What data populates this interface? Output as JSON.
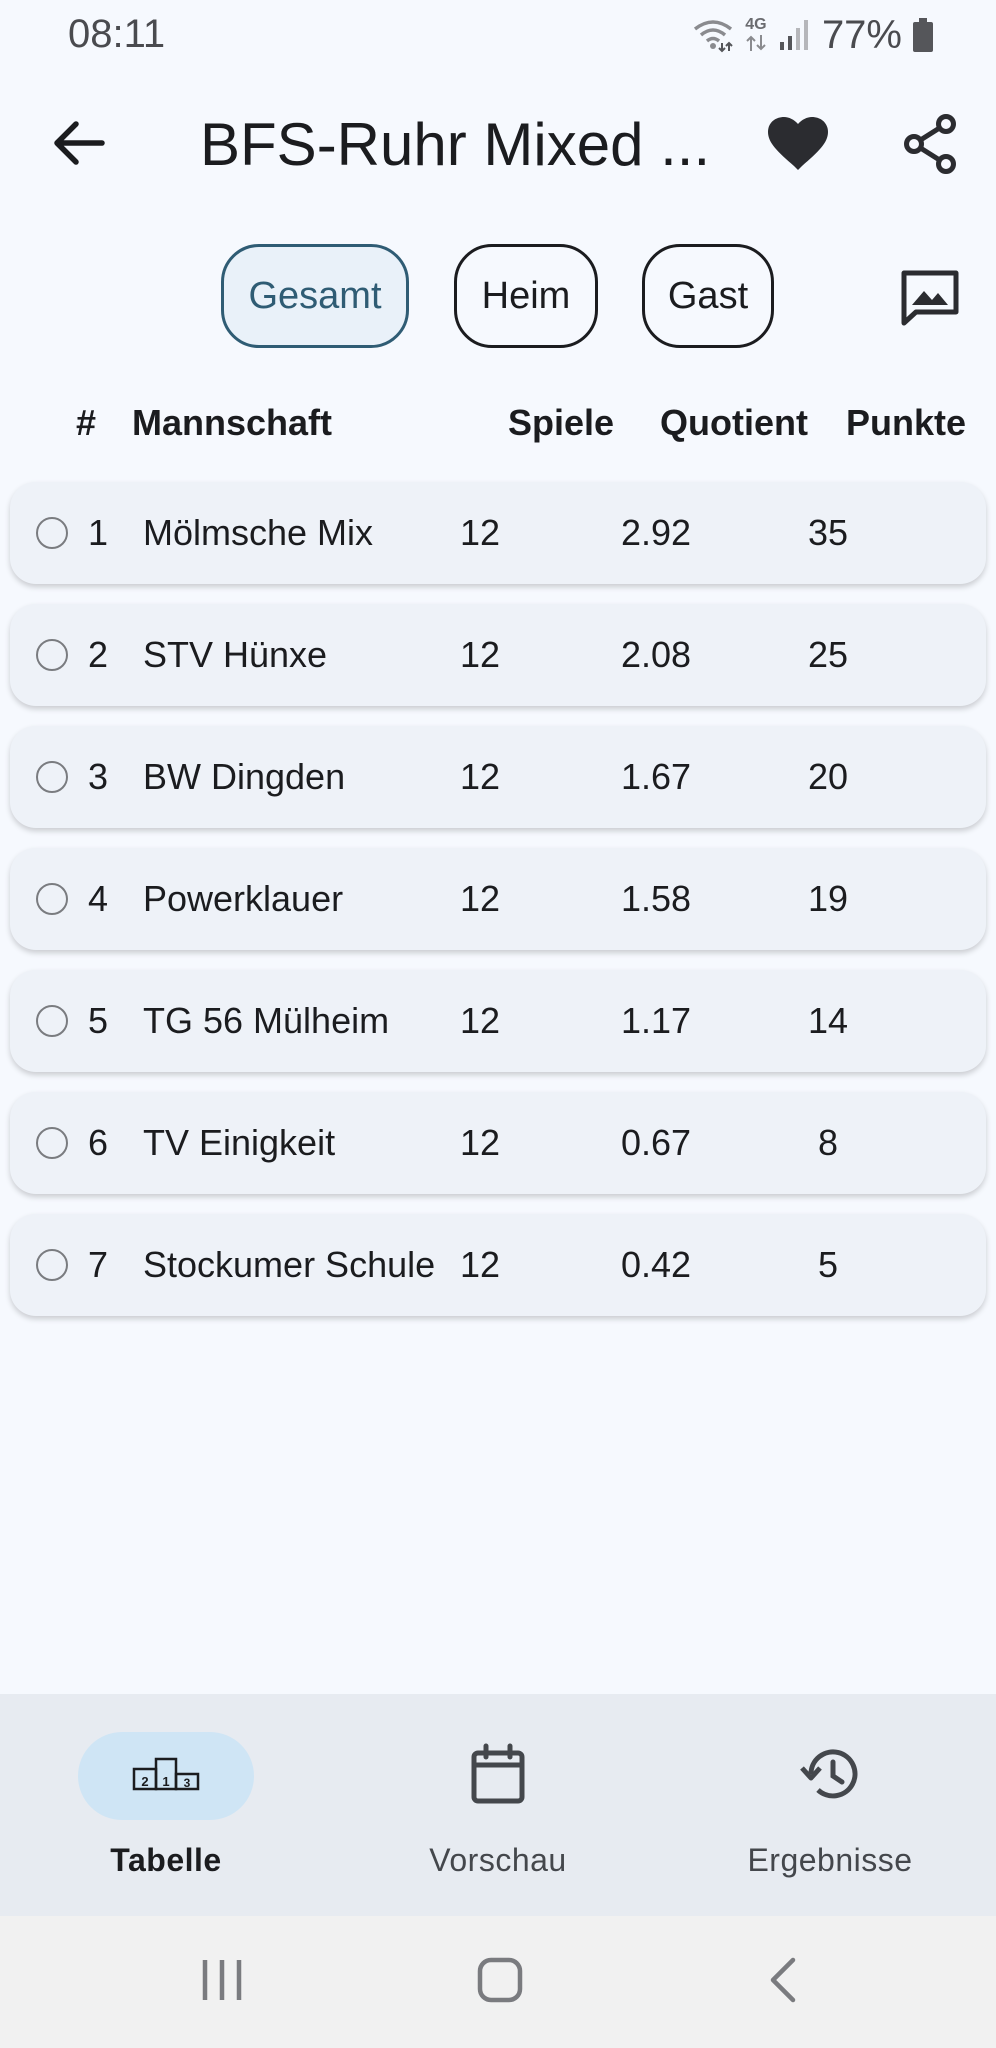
{
  "status_bar": {
    "time": "08:11",
    "network": "4G",
    "battery": "77%"
  },
  "app_bar": {
    "title": "BFS-Ruhr Mixed ..."
  },
  "filters": {
    "gesamt": "Gesamt",
    "heim": "Heim",
    "gast": "Gast",
    "selected": "Gesamt"
  },
  "table": {
    "headers": {
      "rank": "#",
      "team": "Mannschaft",
      "games": "Spiele",
      "quotient": "Quotient",
      "points": "Punkte"
    },
    "rows": [
      {
        "rank": "1",
        "team": "Mölmsche Mix",
        "games": "12",
        "quotient": "2.92",
        "points": "35"
      },
      {
        "rank": "2",
        "team": "STV Hünxe",
        "games": "12",
        "quotient": "2.08",
        "points": "25"
      },
      {
        "rank": "3",
        "team": "BW Dingden",
        "games": "12",
        "quotient": "1.67",
        "points": "20"
      },
      {
        "rank": "4",
        "team": "Powerklauer",
        "games": "12",
        "quotient": "1.58",
        "points": "19"
      },
      {
        "rank": "5",
        "team": "TG 56 Mülheim",
        "games": "12",
        "quotient": "1.17",
        "points": "14"
      },
      {
        "rank": "6",
        "team": "TV Einigkeit",
        "games": "12",
        "quotient": "0.67",
        "points": "8"
      },
      {
        "rank": "7",
        "team": "Stockumer Schule",
        "games": "12",
        "quotient": "0.42",
        "points": "5"
      }
    ]
  },
  "bottom_nav": {
    "tabelle": "Tabelle",
    "vorschau": "Vorschau",
    "ergebnisse": "Ergebnisse",
    "active": "Tabelle"
  },
  "icons": {
    "back": "arrow-back-icon",
    "favorite": "heart-icon",
    "share": "share-icon",
    "image": "image-icon",
    "tabelle": "podium-icon",
    "vorschau": "calendar-icon",
    "ergebnisse": "history-icon"
  },
  "colors": {
    "background": "#f6f9fe",
    "row": "#eef2f8",
    "selected_chip": "#e9f1f9",
    "accent": "#2f5c74",
    "nav_active_pill": "#cfe5f5"
  }
}
